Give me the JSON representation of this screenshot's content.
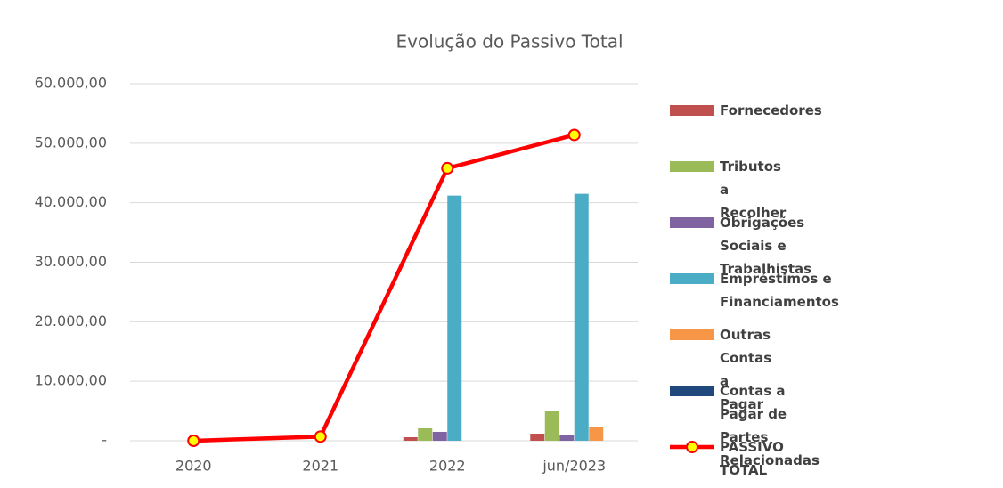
{
  "chart_data": {
    "type": "bar_line",
    "title": "Evolução do Passivo Total",
    "categories": [
      "2020",
      "2021",
      "2022",
      "jun/2023"
    ],
    "series": [
      {
        "name": "Fornecedores",
        "color": "#c0504d",
        "type": "bar",
        "values": [
          0,
          0,
          600,
          1200
        ]
      },
      {
        "name": "Tributos a Recolher",
        "color": "#9bbb59",
        "type": "bar",
        "values": [
          0,
          0,
          2100,
          5000
        ]
      },
      {
        "name": "Obrigações Sociais e Trabalhistas",
        "color": "#8064a2",
        "type": "bar",
        "values": [
          0,
          0,
          1500,
          900
        ]
      },
      {
        "name": "Empréstimos e Financiamentos",
        "color": "#4bacc6",
        "type": "bar",
        "values": [
          0,
          0,
          41200,
          41500
        ]
      },
      {
        "name": "Outras Contas a Pagar",
        "color": "#f79646",
        "type": "bar",
        "values": [
          0,
          0,
          0,
          2300
        ]
      },
      {
        "name": "Contas a Pagar de Partes Relacionadas",
        "color": "#1f497d",
        "type": "bar",
        "values": [
          0,
          0,
          0,
          0
        ]
      },
      {
        "name": "PASSIVO TOTAL",
        "color": "#ff0000",
        "marker_color": "#ffff00",
        "type": "line",
        "values": [
          0,
          700,
          45800,
          51400
        ]
      }
    ],
    "ylim": [
      0,
      60000
    ],
    "yticks": [
      {
        "value": 0,
        "label": "-"
      },
      {
        "value": 10000,
        "label": "10.000,00"
      },
      {
        "value": 20000,
        "label": "20.000,00"
      },
      {
        "value": 30000,
        "label": "30.000,00"
      },
      {
        "value": 40000,
        "label": "40.000,00"
      },
      {
        "value": 50000,
        "label": "50.000,00"
      },
      {
        "value": 60000,
        "label": "60.000,00"
      }
    ],
    "grid": true,
    "legend": "right"
  }
}
